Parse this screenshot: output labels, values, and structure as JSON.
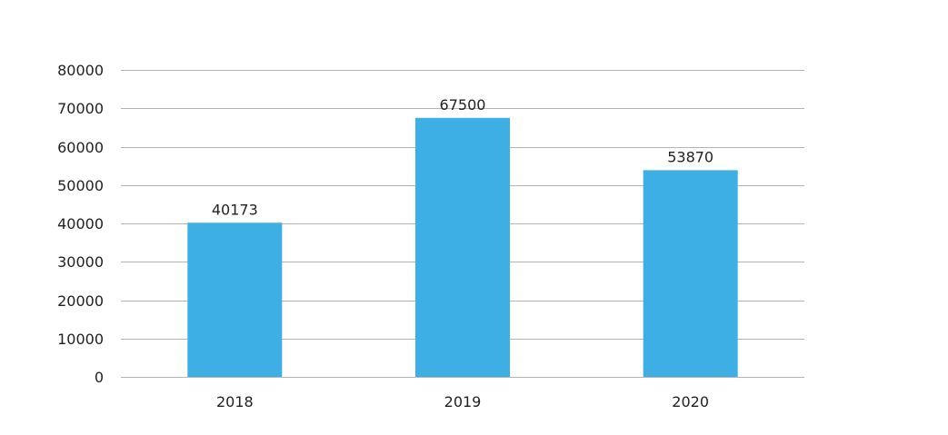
{
  "chart_data": {
    "type": "bar",
    "title": "",
    "xlabel": "",
    "ylabel": "",
    "categories": [
      "2018",
      "2019",
      "2020"
    ],
    "values": [
      40173,
      67500,
      53870
    ],
    "data_labels": [
      "40173",
      "67500",
      "53870"
    ],
    "ylim": [
      0,
      80000
    ],
    "yticks": [
      0,
      10000,
      20000,
      30000,
      40000,
      50000,
      60000,
      70000,
      80000
    ],
    "ytick_labels": [
      "0",
      "10000",
      "20000",
      "30000",
      "40000",
      "50000",
      "60000",
      "70000",
      "80000"
    ],
    "grid": true,
    "legend": "none",
    "colors": {
      "bar": "#3eafe4",
      "grid": "#b5b5b5",
      "text": "#222222"
    }
  }
}
